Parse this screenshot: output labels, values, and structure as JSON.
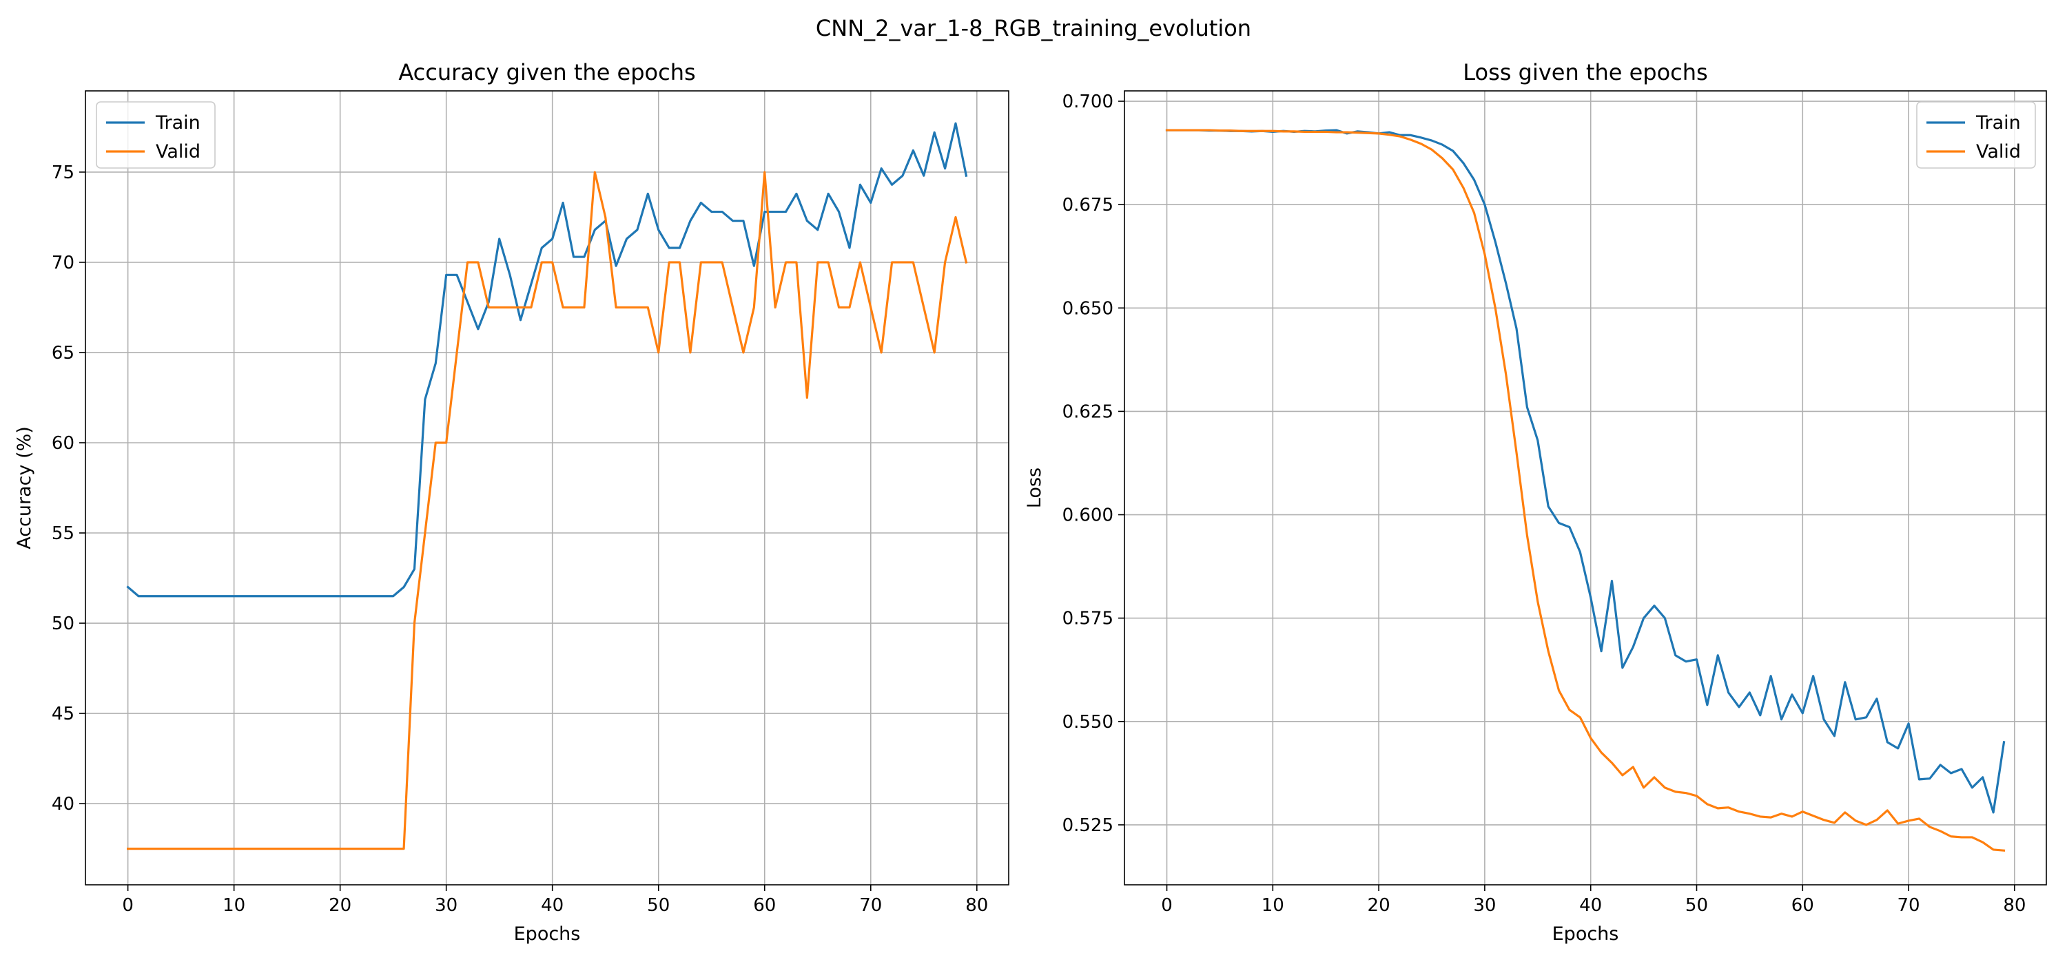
{
  "figure": {
    "title": "CNN_2_var_1-8_RGB_training_evolution"
  },
  "chart_data": [
    {
      "type": "line",
      "title": "Accuracy given the epochs",
      "xlabel": "Epochs",
      "ylabel": "Accuracy (%)",
      "xlim": [
        -4,
        83
      ],
      "ylim": [
        35.5,
        79.5
      ],
      "xticks": [
        0,
        10,
        20,
        30,
        40,
        50,
        60,
        70,
        80
      ],
      "yticks": [
        40,
        45,
        50,
        55,
        60,
        65,
        70,
        75
      ],
      "ytick_labels": [
        "40",
        "45",
        "50",
        "55",
        "60",
        "65",
        "70",
        "75"
      ],
      "grid": true,
      "legend": "top-left",
      "x": [
        0,
        1,
        2,
        3,
        4,
        5,
        6,
        7,
        8,
        9,
        10,
        11,
        12,
        13,
        14,
        15,
        16,
        17,
        18,
        19,
        20,
        21,
        22,
        23,
        24,
        25,
        26,
        27,
        28,
        29,
        30,
        31,
        32,
        33,
        34,
        35,
        36,
        37,
        38,
        39,
        40,
        41,
        42,
        43,
        44,
        45,
        46,
        47,
        48,
        49,
        50,
        51,
        52,
        53,
        54,
        55,
        56,
        57,
        58,
        59,
        60,
        61,
        62,
        63,
        64,
        65,
        66,
        67,
        68,
        69,
        70,
        71,
        72,
        73,
        74,
        75,
        76,
        77,
        78,
        79
      ],
      "series": [
        {
          "name": "Train",
          "color": "#1f77b4",
          "values": [
            52.0,
            51.5,
            51.5,
            51.5,
            51.5,
            51.5,
            51.5,
            51.5,
            51.5,
            51.5,
            51.5,
            51.5,
            51.5,
            51.5,
            51.5,
            51.5,
            51.5,
            51.5,
            51.5,
            51.5,
            51.5,
            51.5,
            51.5,
            51.5,
            51.5,
            51.5,
            52.0,
            53.0,
            62.4,
            64.4,
            69.3,
            69.3,
            67.8,
            66.3,
            67.8,
            71.3,
            69.3,
            66.8,
            68.8,
            70.8,
            71.3,
            73.3,
            70.3,
            70.3,
            71.8,
            72.3,
            69.8,
            71.3,
            71.8,
            73.8,
            71.8,
            70.8,
            70.8,
            72.3,
            73.3,
            72.8,
            72.8,
            72.3,
            72.3,
            69.8,
            72.8,
            72.8,
            72.8,
            73.8,
            72.3,
            71.8,
            73.8,
            72.8,
            70.8,
            74.3,
            73.3,
            75.2,
            74.3,
            74.8,
            76.2,
            74.8,
            77.2,
            75.2,
            77.7,
            74.8
          ]
        },
        {
          "name": "Valid",
          "color": "#ff7f0e",
          "values": [
            37.5,
            37.5,
            37.5,
            37.5,
            37.5,
            37.5,
            37.5,
            37.5,
            37.5,
            37.5,
            37.5,
            37.5,
            37.5,
            37.5,
            37.5,
            37.5,
            37.5,
            37.5,
            37.5,
            37.5,
            37.5,
            37.5,
            37.5,
            37.5,
            37.5,
            37.5,
            37.5,
            50.0,
            55.0,
            60.0,
            60.0,
            65.0,
            70.0,
            70.0,
            67.5,
            67.5,
            67.5,
            67.5,
            67.5,
            70.0,
            70.0,
            67.5,
            67.5,
            67.5,
            75.0,
            72.5,
            67.5,
            67.5,
            67.5,
            67.5,
            65.0,
            70.0,
            70.0,
            65.0,
            70.0,
            70.0,
            70.0,
            67.5,
            65.0,
            67.5,
            75.0,
            67.5,
            70.0,
            70.0,
            62.5,
            70.0,
            70.0,
            67.5,
            67.5,
            70.0,
            67.5,
            65.0,
            70.0,
            70.0,
            70.0,
            67.5,
            65.0,
            70.0,
            72.5,
            70.0
          ]
        }
      ]
    },
    {
      "type": "line",
      "title": "Loss given the epochs",
      "xlabel": "Epochs",
      "ylabel": "Loss",
      "xlim": [
        -4,
        83
      ],
      "ylim": [
        0.5105,
        0.7025
      ],
      "xticks": [
        0,
        10,
        20,
        30,
        40,
        50,
        60,
        70,
        80
      ],
      "yticks": [
        0.525,
        0.55,
        0.575,
        0.6,
        0.625,
        0.65,
        0.675,
        0.7
      ],
      "ytick_labels": [
        "0.525",
        "0.550",
        "0.575",
        "0.600",
        "0.625",
        "0.650",
        "0.675",
        "0.700"
      ],
      "grid": true,
      "legend": "top-right",
      "x": [
        0,
        1,
        2,
        3,
        4,
        5,
        6,
        7,
        8,
        9,
        10,
        11,
        12,
        13,
        14,
        15,
        16,
        17,
        18,
        19,
        20,
        21,
        22,
        23,
        24,
        25,
        26,
        27,
        28,
        29,
        30,
        31,
        32,
        33,
        34,
        35,
        36,
        37,
        38,
        39,
        40,
        41,
        42,
        43,
        44,
        45,
        46,
        47,
        48,
        49,
        50,
        51,
        52,
        53,
        54,
        55,
        56,
        57,
        58,
        59,
        60,
        61,
        62,
        63,
        64,
        65,
        66,
        67,
        68,
        69,
        70,
        71,
        72,
        73,
        74,
        75,
        76,
        77,
        78,
        79
      ],
      "series": [
        {
          "name": "Train",
          "color": "#1f77b4",
          "values": [
            0.693,
            0.693,
            0.693,
            0.693,
            0.6929,
            0.6929,
            0.6928,
            0.6928,
            0.6927,
            0.6928,
            0.6926,
            0.6928,
            0.6926,
            0.6928,
            0.6927,
            0.6929,
            0.693,
            0.6922,
            0.6927,
            0.6925,
            0.6922,
            0.6925,
            0.6918,
            0.6918,
            0.6912,
            0.6905,
            0.6895,
            0.688,
            0.685,
            0.681,
            0.675,
            0.666,
            0.656,
            0.645,
            0.626,
            0.618,
            0.602,
            0.598,
            0.597,
            0.591,
            0.58,
            0.567,
            0.584,
            0.563,
            0.568,
            0.575,
            0.578,
            0.575,
            0.566,
            0.5645,
            0.565,
            0.554,
            0.566,
            0.557,
            0.5535,
            0.557,
            0.5515,
            0.561,
            0.5505,
            0.5565,
            0.552,
            0.561,
            0.5505,
            0.5465,
            0.5595,
            0.5505,
            0.551,
            0.5555,
            0.545,
            0.5435,
            0.5495,
            0.536,
            0.5362,
            0.5395,
            0.5375,
            0.5385,
            0.534,
            0.5365,
            0.528,
            0.545
          ]
        },
        {
          "name": "Valid",
          "color": "#ff7f0e",
          "values": [
            0.693,
            0.693,
            0.693,
            0.693,
            0.693,
            0.6929,
            0.6929,
            0.6928,
            0.6928,
            0.6928,
            0.6928,
            0.6927,
            0.6927,
            0.6926,
            0.6926,
            0.6926,
            0.6925,
            0.6925,
            0.6924,
            0.6923,
            0.6922,
            0.6919,
            0.6915,
            0.6907,
            0.6897,
            0.6883,
            0.6862,
            0.6835,
            0.679,
            0.673,
            0.663,
            0.65,
            0.634,
            0.615,
            0.595,
            0.579,
            0.567,
            0.5575,
            0.5528,
            0.551,
            0.546,
            0.5425,
            0.54,
            0.537,
            0.539,
            0.534,
            0.5365,
            0.534,
            0.533,
            0.5327,
            0.532,
            0.53,
            0.529,
            0.5292,
            0.5282,
            0.5277,
            0.527,
            0.5268,
            0.5277,
            0.527,
            0.5282,
            0.5272,
            0.5262,
            0.5255,
            0.528,
            0.526,
            0.525,
            0.5262,
            0.5285,
            0.5253,
            0.526,
            0.5265,
            0.5245,
            0.5235,
            0.5222,
            0.522,
            0.522,
            0.5208,
            0.519,
            0.5188
          ]
        }
      ]
    }
  ]
}
